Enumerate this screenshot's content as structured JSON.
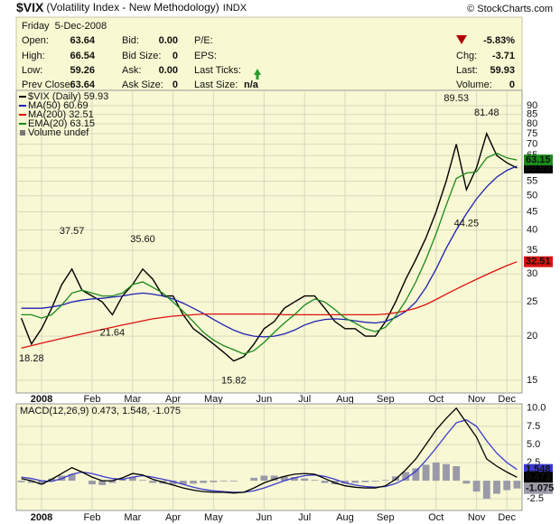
{
  "header": {
    "symbol": "$VIX",
    "name": "(Volatility Index - New Methodology)",
    "exchange": "INDX",
    "source": "© StockCharts.com"
  },
  "quote": {
    "date": "Friday  5-Dec-2008",
    "change_pct": "-5.83%",
    "columns": [
      [
        [
          "Open:",
          "63.64"
        ],
        [
          "High:",
          "66.54"
        ],
        [
          "Low:",
          "59.26"
        ],
        [
          "Prev Close:",
          "63.64"
        ]
      ],
      [
        [
          "Bid:",
          "0.00"
        ],
        [
          "Bid Size:",
          "0"
        ],
        [
          "Ask:",
          "0.00"
        ],
        [
          "Ask Size:",
          "0"
        ]
      ],
      [
        [
          "P/E:"
        ],
        [
          "EPS:"
        ],
        [
          "Last Ticks:"
        ],
        [
          "Last Size:",
          "n/a"
        ]
      ],
      [
        [
          "Chg:",
          "-3.71"
        ],
        [
          "Last:",
          "59.93"
        ],
        [
          "Volume:",
          "0"
        ]
      ]
    ]
  },
  "chart_data": [
    {
      "type": "line",
      "log_scale": true,
      "grid": true,
      "categories": [
        null,
        null,
        "2008",
        null,
        null,
        null,
        null,
        "Feb",
        null,
        null,
        null,
        "Mar",
        null,
        null,
        null,
        "Apr",
        null,
        null,
        null,
        "May",
        null,
        null,
        null,
        null,
        "Jun",
        null,
        null,
        null,
        "Jul",
        null,
        null,
        null,
        "Aug",
        null,
        null,
        null,
        "Sep",
        null,
        null,
        null,
        null,
        "Oct",
        null,
        null,
        null,
        "Nov",
        null,
        null,
        "Dec",
        null
      ],
      "ylim": [
        13.8,
        99.5
      ],
      "yticks": [
        15,
        20,
        25,
        30,
        35,
        40,
        45,
        50,
        55,
        60,
        65,
        70,
        75,
        80,
        85,
        90
      ],
      "volume_label": "Volume undef",
      "series": [
        {
          "name": "$VIX (Daily)",
          "color": "#000000",
          "end_label": true,
          "values": [
            22.5,
            19,
            21,
            24,
            28,
            31,
            27,
            26,
            25,
            23,
            26,
            28,
            31,
            29,
            26,
            26,
            23,
            21,
            20,
            19,
            18,
            17,
            17.5,
            19,
            21,
            22,
            24,
            25,
            26,
            26,
            24,
            22,
            21,
            21,
            20,
            20,
            22,
            25,
            29,
            33,
            38,
            45,
            55,
            70,
            52,
            60,
            75,
            65,
            62,
            59.93
          ],
          "high_labels": [
            null,
            null,
            null,
            null,
            null,
            "37.57",
            null,
            null,
            null,
            null,
            null,
            null,
            "35.60",
            null,
            null,
            null,
            null,
            null,
            null,
            null,
            null,
            null,
            null,
            null,
            null,
            null,
            null,
            null,
            null,
            null,
            null,
            null,
            null,
            null,
            null,
            null,
            null,
            null,
            null,
            null,
            null,
            null,
            null,
            "89.53",
            null,
            null,
            "81.48",
            null,
            null,
            null
          ],
          "low_labels": [
            null,
            "18.28",
            null,
            null,
            null,
            null,
            null,
            null,
            null,
            "21.64",
            null,
            null,
            null,
            null,
            null,
            null,
            null,
            null,
            null,
            null,
            null,
            "15.82",
            null,
            null,
            null,
            null,
            null,
            null,
            null,
            null,
            null,
            null,
            null,
            null,
            null,
            null,
            null,
            null,
            null,
            null,
            null,
            null,
            null,
            null,
            "44.25",
            null,
            null,
            null,
            null,
            null
          ]
        },
        {
          "name": "MA(50)",
          "color": "#2020b0",
          "end_label": false,
          "values": [
            24,
            24,
            24,
            24.2,
            24.5,
            25,
            25.3,
            25.5,
            25.6,
            25.8,
            26,
            26.3,
            26.5,
            26.3,
            26,
            25.5,
            24.8,
            24,
            23.2,
            22.3,
            21.5,
            20.8,
            20.3,
            20,
            19.9,
            20,
            20.3,
            20.8,
            21.5,
            22,
            22.3,
            22.4,
            22.3,
            22.1,
            21.9,
            21.8,
            22,
            22.6,
            23.5,
            25,
            27.5,
            31,
            35.5,
            40,
            44.5,
            49,
            53,
            56.5,
            59,
            60.69
          ]
        },
        {
          "name": "MA(200)",
          "color": "#dd1111",
          "end_label": true,
          "values": [
            18.5,
            18.8,
            19.1,
            19.4,
            19.7,
            20,
            20.3,
            20.6,
            20.9,
            21.2,
            21.5,
            21.8,
            22.1,
            22.4,
            22.6,
            22.8,
            22.9,
            23,
            23.1,
            23.1,
            23.1,
            23.1,
            23.1,
            23.1,
            23.1,
            23.1,
            23,
            23,
            23,
            23,
            23,
            23,
            23,
            23,
            23,
            23,
            23.1,
            23.3,
            23.6,
            24,
            24.6,
            25.4,
            26.3,
            27.2,
            28.1,
            29,
            29.9,
            30.8,
            31.7,
            32.51
          ]
        },
        {
          "name": "EMA(20)",
          "color": "#1a8a1a",
          "end_label": true,
          "values": [
            23,
            23,
            22.5,
            23,
            24.5,
            26.5,
            27,
            26.5,
            26,
            26,
            26.5,
            28,
            28.5,
            27.5,
            26.5,
            25,
            23.5,
            22,
            20.5,
            19.5,
            18.8,
            18.3,
            17.8,
            18.2,
            19.2,
            20.5,
            21.8,
            23,
            24.5,
            25.5,
            25,
            23.8,
            22.5,
            21.8,
            21,
            20.6,
            21.2,
            22.8,
            25.2,
            28.5,
            33,
            39,
            47,
            56,
            58,
            58.5,
            64,
            66,
            64,
            63.15
          ]
        }
      ]
    },
    {
      "type": "line",
      "log_scale": false,
      "grid": true,
      "legend": "MACD(12,26,9) 0.473, 1.548, -1.075",
      "categories": [
        null,
        null,
        "2008",
        null,
        null,
        null,
        null,
        "Feb",
        null,
        null,
        null,
        "Mar",
        null,
        null,
        null,
        "Apr",
        null,
        null,
        null,
        "May",
        null,
        null,
        null,
        null,
        "Jun",
        null,
        null,
        null,
        "Jul",
        null,
        null,
        null,
        "Aug",
        null,
        null,
        null,
        "Sep",
        null,
        null,
        null,
        null,
        "Oct",
        null,
        null,
        null,
        "Nov",
        null,
        null,
        "Dec",
        null
      ],
      "ylim": [
        -4.1,
        10.6
      ],
      "yticks": [
        {
          "value": 10,
          "label": "10.0"
        },
        7.5,
        {
          "value": 5,
          "label": "5.0"
        },
        2.5,
        -2.5
      ],
      "series": [
        {
          "type": "bar",
          "color": "#9a9aa8",
          "end_label": true,
          "values": [
            -0.2,
            -0.3,
            -0.5,
            0.3,
            0.7,
            0.9,
            0,
            -0.5,
            -0.6,
            -0.3,
            0.2,
            0.5,
            0.1,
            -0.3,
            -0.4,
            -0.5,
            -0.5,
            -0.4,
            -0.3,
            -0.2,
            -0.1,
            -0.1,
            0,
            0.4,
            0.7,
            0.7,
            0.6,
            0.5,
            0.3,
            0.1,
            -0.3,
            -0.5,
            -0.4,
            -0.3,
            -0.2,
            -0.1,
            0.1,
            0.6,
            1.2,
            1.7,
            2.2,
            2.5,
            2.3,
            2,
            -0.4,
            -1.5,
            -2.5,
            -1.8,
            -1.3,
            -1.075
          ]
        },
        {
          "type": "line",
          "color": "#3a3acc",
          "end_label": true,
          "values": [
            0.5,
            0.3,
            0,
            -0.1,
            0.3,
            0.9,
            1.2,
            1,
            0.6,
            0.3,
            0.2,
            0.5,
            0.7,
            0.5,
            0.2,
            -0.1,
            -0.5,
            -0.9,
            -1.2,
            -1.4,
            -1.5,
            -1.6,
            -1.6,
            -1.4,
            -1,
            -0.5,
            0,
            0.4,
            0.7,
            0.8,
            0.6,
            0.2,
            -0.3,
            -0.6,
            -0.8,
            -0.9,
            -0.8,
            -0.4,
            0.3,
            1.3,
            2.8,
            4.5,
            6.3,
            8,
            8.4,
            7.5,
            5.5,
            3.8,
            2.5,
            1.548
          ]
        },
        {
          "type": "line",
          "color": "#000000",
          "end_label": true,
          "values": [
            0.3,
            0,
            -0.5,
            0.2,
            1,
            1.8,
            1.2,
            0.5,
            0,
            0,
            0.4,
            1,
            0.8,
            0.2,
            -0.2,
            -0.6,
            -1,
            -1.3,
            -1.5,
            -1.6,
            -1.6,
            -1.7,
            -1.6,
            -1,
            -0.3,
            0.2,
            0.6,
            0.9,
            1,
            0.9,
            0.3,
            -0.3,
            -0.7,
            -0.9,
            -1,
            -1,
            -0.7,
            0.2,
            1.5,
            3,
            5,
            7,
            8.6,
            10,
            8,
            6,
            3,
            2,
            1.2,
            0.473
          ]
        }
      ]
    }
  ]
}
